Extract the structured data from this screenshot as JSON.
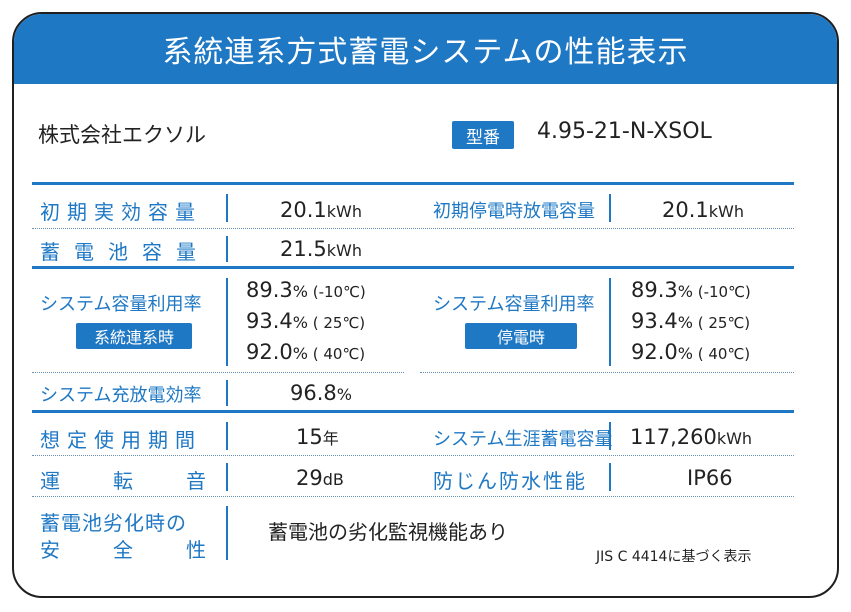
{
  "header": {
    "title": "系統連系方式蓄電システムの性能表示"
  },
  "company": "株式会社エクソル",
  "model": {
    "badge": "型番",
    "value": "4.95-21-N-XSOL"
  },
  "rows": {
    "initial_capacity": {
      "label": "初期実効容量",
      "number": "20.1",
      "unit": "kWh"
    },
    "initial_outage_capacity": {
      "label": "初期停電時放電容量",
      "number": "20.1",
      "unit": "kWh"
    },
    "battery_capacity": {
      "label": "蓄電池容量",
      "number": "21.5",
      "unit": "kWh"
    },
    "utilization_grid": {
      "label": "システム容量利用率",
      "tag": "系統連系時",
      "values": [
        {
          "number": "89.3",
          "unit": "%",
          "cond": " (-10℃)"
        },
        {
          "number": "93.4",
          "unit": "%",
          "cond": " ( 25℃)"
        },
        {
          "number": "92.0",
          "unit": "%",
          "cond": " ( 40℃)"
        }
      ]
    },
    "utilization_outage": {
      "label": "システム容量利用率",
      "tag": "停電時",
      "values": [
        {
          "number": "89.3",
          "unit": "%",
          "cond": " (-10℃)"
        },
        {
          "number": "93.4",
          "unit": "%",
          "cond": " ( 25℃)"
        },
        {
          "number": "92.0",
          "unit": "%",
          "cond": " ( 40℃)"
        }
      ]
    },
    "charge_efficiency": {
      "label": "システム充放電効率",
      "number": "96.8",
      "unit": "%"
    },
    "service_life": {
      "label": "想定使用期間",
      "number": "15",
      "unit": "年"
    },
    "lifetime_capacity": {
      "label": "システム生涯蓄電容量",
      "number": "117,260",
      "unit": "kWh"
    },
    "noise": {
      "label_chars": [
        "運",
        "転",
        "音"
      ],
      "number": "29",
      "unit": "dB"
    },
    "ingress": {
      "label": "防じん防水性能",
      "value": "IP66"
    },
    "degradation_safety": {
      "label_line1": "蓄電池劣化時の",
      "label_line2_chars": [
        "安",
        "全",
        "性"
      ],
      "value": "蓄電池の劣化監視機能あり"
    }
  },
  "footnote": "JIS C 4414に基づく表示",
  "colors": {
    "accent": "#1f78c4",
    "text": "#222222",
    "border": "#1f1f1f"
  }
}
